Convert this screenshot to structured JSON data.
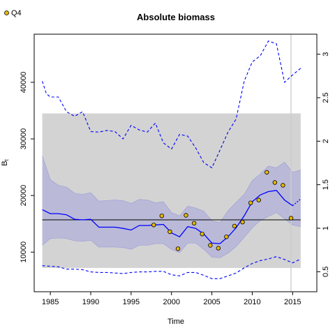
{
  "chart_data": {
    "type": "line",
    "title": "Absolute biomass",
    "xlabel": "Time",
    "ylabel": "B",
    "ylabel_subscript": "t",
    "xlim": [
      1983,
      2018
    ],
    "ylim": [
      3000,
      48500
    ],
    "y2lim": [
      0.27,
      3.23
    ],
    "x_ticks": [
      1985,
      1990,
      1995,
      2000,
      2005,
      2010,
      2015
    ],
    "y_ticks": [
      10000,
      20000,
      30000,
      40000
    ],
    "y2_ticks": [
      0.5,
      1,
      1.5,
      2,
      2.5,
      3
    ],
    "grid": false,
    "legend": {
      "position": "top-left",
      "entries": [
        {
          "label": "Q4",
          "marker": "circle",
          "color": "#e6b800"
        }
      ]
    },
    "colors": {
      "estimate": "#0000ff",
      "band": "#b5b5d8",
      "region": "#d3d3d3",
      "points": "#e6b800",
      "vline": "#cccccc",
      "hline": "#000000"
    },
    "reference_region": {
      "x": [
        1984,
        2016
      ],
      "y": [
        7200,
        34500
      ]
    },
    "reference_line_y": 15700,
    "vertical_line_x": 2014.8,
    "series": [
      {
        "name": "Q4",
        "role": "index points",
        "points": [
          [
            1997.8,
            14800
          ],
          [
            1998.8,
            16400
          ],
          [
            1999.8,
            13600
          ],
          [
            2000.8,
            10600
          ],
          [
            2001.8,
            16500
          ],
          [
            2002.8,
            15100
          ],
          [
            2003.8,
            13200
          ],
          [
            2004.8,
            11200
          ],
          [
            2005.8,
            10700
          ],
          [
            2006.8,
            12700
          ],
          [
            2007.8,
            14600
          ],
          [
            2008.8,
            15300
          ],
          [
            2009.8,
            18700
          ],
          [
            2010.8,
            19200
          ],
          [
            2011.8,
            24100
          ],
          [
            2012.8,
            22300
          ],
          [
            2013.8,
            21800
          ],
          [
            2014.8,
            16000
          ]
        ]
      },
      {
        "role": "estimate",
        "x": [
          1984,
          1985,
          1986,
          1987,
          1988,
          1989,
          1990,
          1991,
          1992,
          1993,
          1994,
          1995,
          1996,
          1997,
          1998,
          1999,
          2000,
          2001,
          2002,
          2003,
          2004,
          2005,
          2006,
          2007,
          2008,
          2009,
          2010,
          2011,
          2012,
          2013,
          2014,
          2015
        ],
        "y": [
          17500,
          16800,
          16800,
          16600,
          15800,
          15700,
          15800,
          14400,
          14400,
          14400,
          14200,
          13900,
          14700,
          14700,
          14800,
          14900,
          13400,
          12700,
          14500,
          14200,
          13200,
          11600,
          11500,
          12700,
          14300,
          16400,
          18900,
          20100,
          20700,
          20900,
          19200,
          18200
        ]
      },
      {
        "role": "band-upper",
        "x": [
          1984,
          1985,
          1986,
          1987,
          1988,
          1989,
          1990,
          1991,
          1992,
          1993,
          1994,
          1995,
          1996,
          1997,
          1998,
          1999,
          2000,
          2001,
          2002,
          2003,
          2004,
          2005,
          2006,
          2007,
          2008,
          2009,
          2010,
          2011,
          2012,
          2013,
          2014,
          2015,
          2016
        ],
        "y": [
          27000,
          22800,
          21800,
          21500,
          20400,
          20200,
          20500,
          19000,
          19100,
          19200,
          19100,
          18600,
          19300,
          19200,
          18700,
          18900,
          17000,
          16400,
          18100,
          17800,
          17200,
          15500,
          15200,
          17300,
          18800,
          20200,
          22600,
          23800,
          25200,
          24900,
          25900,
          24100,
          24500
        ]
      },
      {
        "role": "band-lower",
        "x": [
          1984,
          1985,
          1986,
          1987,
          1988,
          1989,
          1990,
          1991,
          1992,
          1993,
          1994,
          1995,
          1996,
          1997,
          1998,
          1999,
          2000,
          2001,
          2002,
          2003,
          2004,
          2005,
          2006,
          2007,
          2008,
          2009,
          2010,
          2011,
          2012,
          2013,
          2014,
          2015,
          2016
        ],
        "y": [
          11200,
          12400,
          12500,
          12400,
          12000,
          11900,
          12100,
          10900,
          10900,
          10900,
          10800,
          10500,
          11200,
          11200,
          11500,
          11500,
          10500,
          9900,
          11600,
          11600,
          10500,
          9100,
          9000,
          9800,
          11000,
          12600,
          14300,
          15600,
          16300,
          17000,
          15900,
          14800,
          14500
        ]
      },
      {
        "role": "forecast",
        "x": [
          2015,
          2016
        ],
        "y": [
          18200,
          19400
        ]
      },
      {
        "role": "outer-upper",
        "x": [
          1984,
          1984.5,
          1985,
          1986,
          1987,
          1988,
          1989,
          1990,
          1991,
          1992,
          1993,
          1994,
          1995,
          1996,
          1997,
          1998,
          1999,
          2000,
          2001,
          2002,
          2003,
          2004,
          2005,
          2006,
          2007,
          2008,
          2009,
          2010,
          2011,
          2012,
          2013,
          2014,
          2015,
          2016
        ],
        "y": [
          40200,
          38000,
          37400,
          37400,
          34800,
          34000,
          34800,
          31300,
          31200,
          31500,
          31300,
          30000,
          32400,
          31600,
          31200,
          32800,
          29300,
          28200,
          30800,
          30500,
          28400,
          25800,
          24900,
          28000,
          31200,
          33500,
          40200,
          43600,
          44700,
          47300,
          46800,
          40000,
          41300,
          42500
        ]
      },
      {
        "role": "outer-lower",
        "x": [
          1984,
          1985,
          1986,
          1987,
          1988,
          1989,
          1990,
          1991,
          1992,
          1993,
          1994,
          1995,
          1996,
          1997,
          1998,
          1999,
          2000,
          2001,
          2002,
          2003,
          2004,
          2005,
          2006,
          2007,
          2008,
          2009,
          2010,
          2011,
          2012,
          2013,
          2014,
          2015,
          2016
        ],
        "y": [
          7600,
          7500,
          7400,
          7000,
          7000,
          6900,
          6500,
          6400,
          6400,
          6300,
          6200,
          6400,
          6500,
          6500,
          6600,
          6600,
          6000,
          5800,
          6400,
          6400,
          5900,
          5300,
          5300,
          5800,
          6300,
          7200,
          8000,
          8500,
          8800,
          9200,
          8700,
          8100,
          8800
        ]
      }
    ]
  }
}
